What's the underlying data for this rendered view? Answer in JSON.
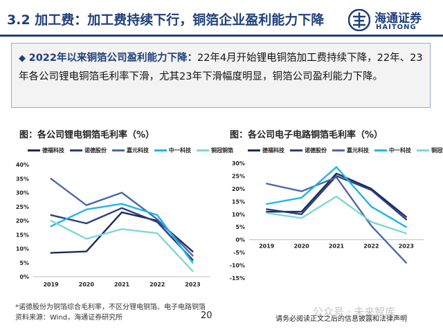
{
  "header": {
    "title": "3.2 加工费：加工费持续下行，铜箔企业盈利能力下降",
    "logo_cn": "海通证券",
    "logo_en": "HAITONG"
  },
  "summary": {
    "bullet": "◆",
    "lead": "2022年以来铜箔公司盈利能力下降：",
    "body": "22年4月开始锂电铜箔加工费持续下降，22年、23年各公司锂电铜箔毛利率下滑，尤其23年下滑幅度明显，铜箔公司盈利能力下降。"
  },
  "colors": {
    "德福科技": "#1a2a5e",
    "诺德股份": "#283f7f",
    "嘉元科技": "#4a68a8",
    "中一科技": "#1fb5e8",
    "铜冠铜箔": "#7fd8d2"
  },
  "chart_data": [
    {
      "type": "line",
      "title": "图：各公司锂电铜箔毛利率（%）",
      "categories": [
        "2019",
        "2020",
        "2021",
        "2022",
        "2023"
      ],
      "y_ticks": [
        "0%",
        "5%",
        "10%",
        "15%",
        "20%",
        "25%",
        "30%",
        "35%",
        "40%"
      ],
      "ylim": [
        0,
        40
      ],
      "series": [
        {
          "name": "德福科技",
          "values": [
            8.5,
            9,
            23,
            20,
            9
          ]
        },
        {
          "name": "诺德股份",
          "values": [
            22,
            19,
            24.5,
            19.5,
            6
          ]
        },
        {
          "name": "嘉元科技",
          "values": [
            35,
            25.5,
            30,
            20.5,
            7.5
          ]
        },
        {
          "name": "中一科技",
          "values": [
            18,
            24,
            26,
            22,
            5
          ]
        },
        {
          "name": "铜冠铜箔",
          "values": [
            20,
            13.5,
            17,
            15.5,
            2
          ]
        }
      ]
    },
    {
      "type": "line",
      "title": "图：各公司电子电路铜箔毛利率（%）",
      "categories": [
        "2019",
        "2020",
        "2021",
        "2022",
        "2023"
      ],
      "y_ticks": [
        "-15%",
        "-10%",
        "-5%",
        "0%",
        "5%",
        "10%",
        "15%",
        "20%",
        "25%",
        "30%"
      ],
      "ylim": [
        -15,
        30
      ],
      "series": [
        {
          "name": "德福科技",
          "values": [
            11,
            11,
            26,
            20,
            9
          ]
        },
        {
          "name": "诺德股份",
          "values": [
            12,
            10,
            25,
            19.5,
            8
          ]
        },
        {
          "name": "嘉元科技",
          "values": [
            22,
            19,
            24.5,
            5.5,
            -9
          ]
        },
        {
          "name": "中一科技",
          "values": [
            14,
            16.5,
            28.5,
            13,
            5
          ]
        },
        {
          "name": "铜冠铜箔",
          "values": [
            10.5,
            8.5,
            17,
            7,
            2.5
          ]
        }
      ]
    }
  ],
  "footnote": {
    "line1": "*诺德股份为铜箔综合毛利率，不区分锂电铜箔、电子电路铜箔",
    "line2": "资料来源：Wind，海通证券研究所"
  },
  "page_number": "20",
  "disclaimer": "请务必阅读正文之后的信息披露和法律声明",
  "watermark": "公众号 · 未来智库"
}
